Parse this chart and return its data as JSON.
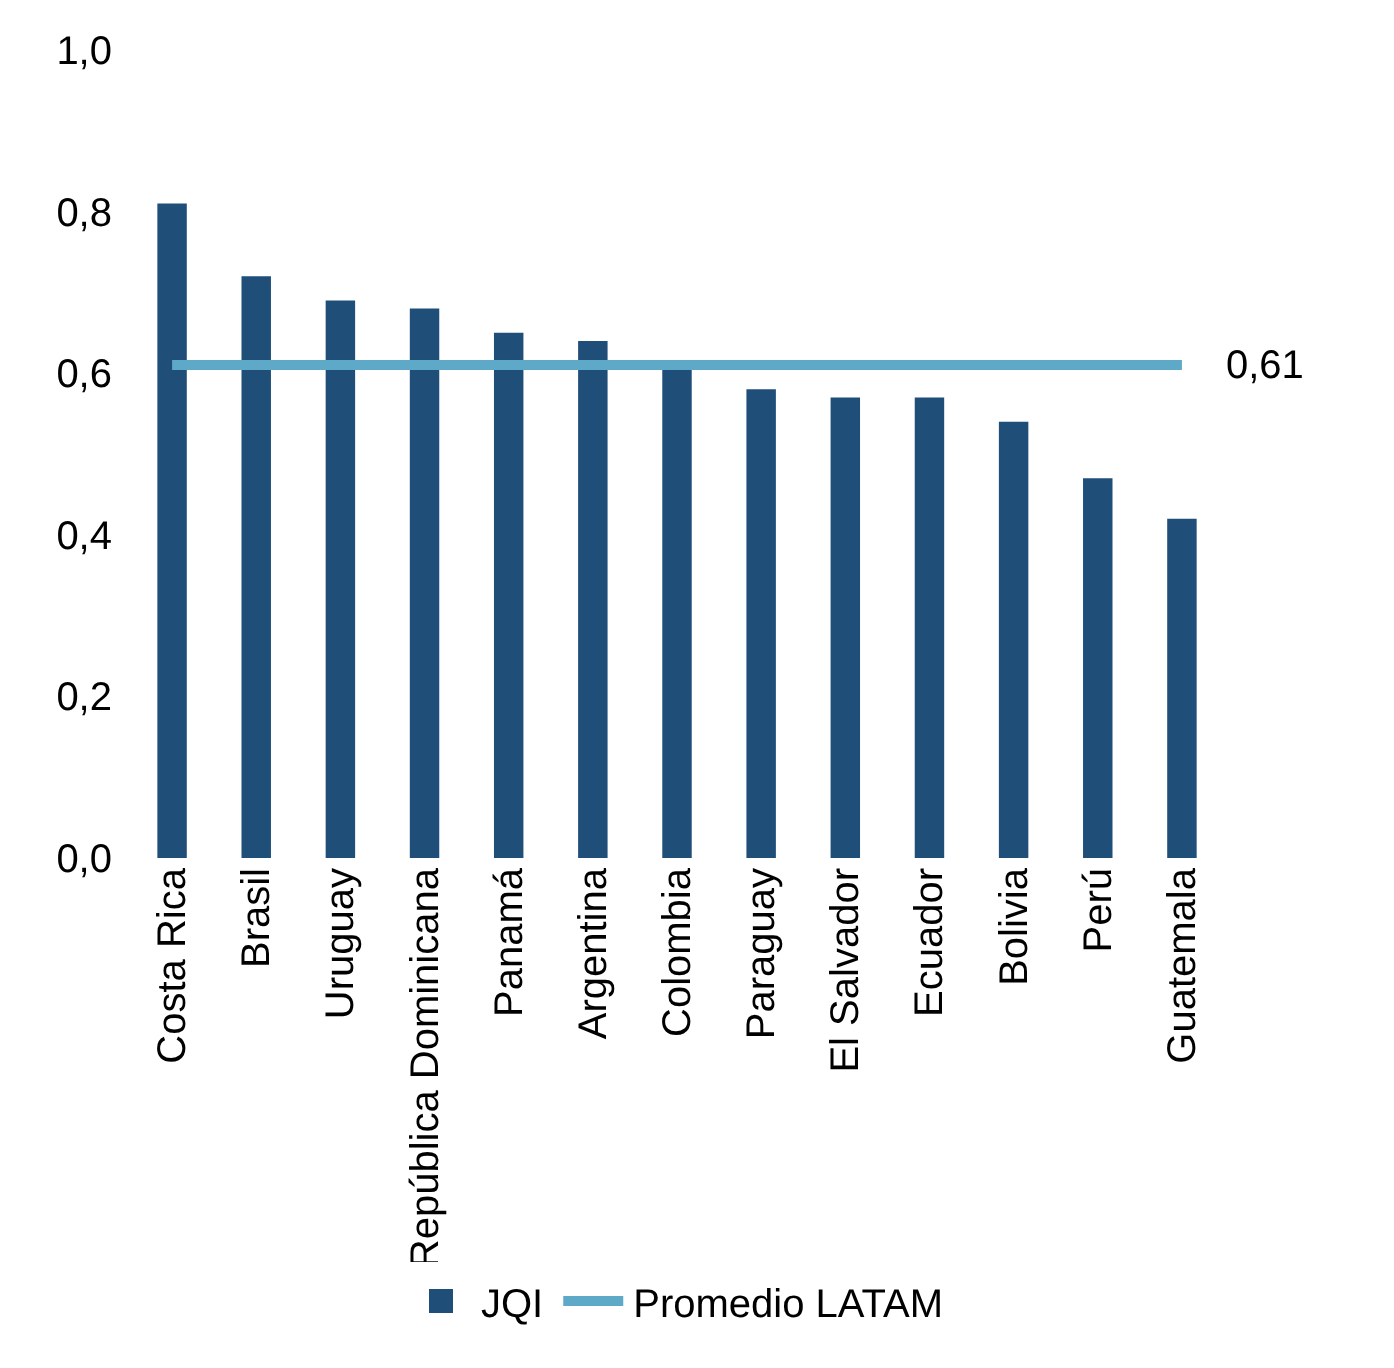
{
  "chart_data": {
    "type": "bar",
    "categories": [
      "Costa Rica",
      "Brasil",
      "Uruguay",
      "República Dominicana",
      "Panamá",
      "Argentina",
      "Colombia",
      "Paraguay",
      "El Salvador",
      "Ecuador",
      "Bolivia",
      "Perú",
      "Guatemala"
    ],
    "series": [
      {
        "name": "JQI",
        "color": "#1f4e79",
        "values": [
          0.81,
          0.72,
          0.69,
          0.68,
          0.65,
          0.64,
          0.61,
          0.58,
          0.57,
          0.57,
          0.54,
          0.47,
          0.42
        ]
      },
      {
        "name": "Promedio LATAM",
        "type": "line",
        "color": "#5ea8c8",
        "values": [
          0.61,
          0.61,
          0.61,
          0.61,
          0.61,
          0.61,
          0.61,
          0.61,
          0.61,
          0.61,
          0.61,
          0.61,
          0.61
        ]
      }
    ],
    "annotations": [
      {
        "text": "0,61",
        "x": "Guatemala",
        "y": 0.61
      }
    ],
    "ylim": [
      0,
      1
    ],
    "yticks": [
      {
        "value": 0,
        "label": "0,0"
      },
      {
        "value": 0.2,
        "label": "0,2"
      },
      {
        "value": 0.4,
        "label": "0,4"
      },
      {
        "value": 0.6,
        "label": "0,6"
      },
      {
        "value": 0.8,
        "label": "0,8"
      },
      {
        "value": 1,
        "label": "1,0"
      }
    ],
    "grid": false,
    "legend": "bottom",
    "marker": "none",
    "line_style": "solid"
  }
}
